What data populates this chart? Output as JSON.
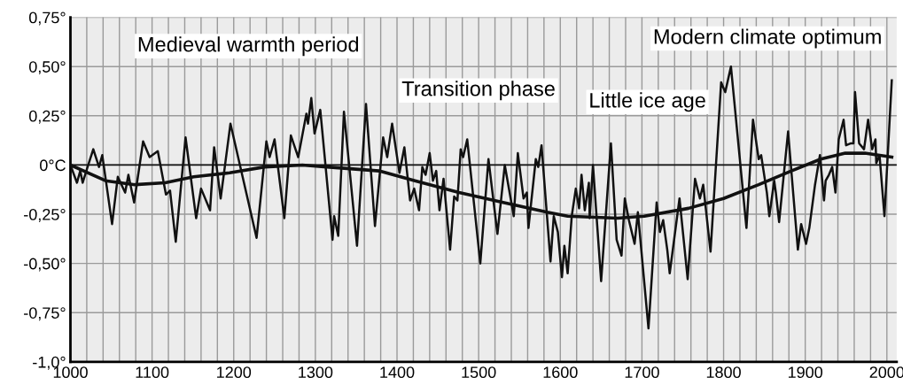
{
  "chart_data": {
    "type": "line",
    "xlim": [
      1000,
      2012
    ],
    "ylim": [
      -1.0,
      0.75
    ],
    "xticks": [
      1000,
      {
        "value": 1020,
        "label": null
      },
      {
        "value": 1040,
        "label": null
      },
      {
        "value": 1060,
        "label": null
      },
      {
        "value": 1080,
        "label": null
      },
      1100,
      {
        "value": 1120,
        "label": null
      },
      {
        "value": 1140,
        "label": null
      },
      {
        "value": 1160,
        "label": null
      },
      {
        "value": 1180,
        "label": null
      },
      1200,
      {
        "value": 1220,
        "label": null
      },
      {
        "value": 1240,
        "label": null
      },
      {
        "value": 1260,
        "label": null
      },
      {
        "value": 1280,
        "label": null
      },
      1300,
      {
        "value": 1320,
        "label": null
      },
      {
        "value": 1340,
        "label": null
      },
      {
        "value": 1360,
        "label": null
      },
      {
        "value": 1380,
        "label": null
      },
      1400,
      {
        "value": 1420,
        "label": null
      },
      {
        "value": 1440,
        "label": null
      },
      {
        "value": 1460,
        "label": null
      },
      {
        "value": 1480,
        "label": null
      },
      1500,
      {
        "value": 1520,
        "label": null
      },
      {
        "value": 1540,
        "label": null
      },
      {
        "value": 1560,
        "label": null
      },
      {
        "value": 1580,
        "label": null
      },
      1600,
      {
        "value": 1620,
        "label": null
      },
      {
        "value": 1640,
        "label": null
      },
      {
        "value": 1660,
        "label": null
      },
      {
        "value": 1680,
        "label": null
      },
      1700,
      {
        "value": 1720,
        "label": null
      },
      {
        "value": 1740,
        "label": null
      },
      {
        "value": 1760,
        "label": null
      },
      {
        "value": 1780,
        "label": null
      },
      1800,
      {
        "value": 1820,
        "label": null
      },
      {
        "value": 1840,
        "label": null
      },
      {
        "value": 1860,
        "label": null
      },
      {
        "value": 1880,
        "label": null
      },
      1900,
      {
        "value": 1920,
        "label": null
      },
      {
        "value": 1940,
        "label": null
      },
      {
        "value": 1960,
        "label": null
      },
      {
        "value": 1980,
        "label": null
      },
      2000
    ],
    "yticks": [
      {
        "value": 0.75,
        "label": "0,75°"
      },
      {
        "value": 0.5,
        "label": "0,50°"
      },
      {
        "value": 0.25,
        "label": "0,25°"
      },
      {
        "value": 0,
        "label": "0°C"
      },
      {
        "value": -0.25,
        "label": "-0,25°"
      },
      {
        "value": -0.5,
        "label": "-0,50°"
      },
      {
        "value": -0.75,
        "label": "-0,75°"
      },
      {
        "value": -1.0,
        "label": "-1,0°"
      }
    ],
    "grid": true,
    "ref_lines": [
      {
        "axis": "y",
        "value": 0,
        "color": "#111111"
      }
    ],
    "series": [
      {
        "color": "#111111",
        "x": [
          1000,
          1008,
          1012,
          1015,
          1021,
          1028,
          1035,
          1039,
          1051,
          1058,
          1067,
          1071,
          1078,
          1089,
          1097,
          1107,
          1117,
          1122,
          1129,
          1141,
          1154,
          1160,
          1171,
          1176,
          1184,
          1196,
          1228,
          1240,
          1244,
          1250,
          1262,
          1270,
          1279,
          1289,
          1291,
          1295,
          1299,
          1306,
          1321,
          1323,
          1328,
          1335,
          1351,
          1362,
          1373,
          1383,
          1388,
          1394,
          1403,
          1409,
          1416,
          1421,
          1427,
          1431,
          1435,
          1440,
          1444,
          1448,
          1452,
          1457,
          1465,
          1470,
          1474,
          1478,
          1481,
          1486,
          1502,
          1512,
          1523,
          1532,
          1543,
          1548,
          1555,
          1559,
          1561,
          1570,
          1573,
          1577,
          1588,
          1592,
          1597,
          1602,
          1605,
          1609,
          1614,
          1619,
          1623,
          1626,
          1630,
          1635,
          1636,
          1640,
          1650,
          1662,
          1669,
          1675,
          1679,
          1684,
          1691,
          1695,
          1708,
          1718,
          1722,
          1726,
          1731,
          1734,
          1746,
          1756,
          1765,
          1771,
          1775,
          1784,
          1797,
          1802,
          1809,
          1828,
          1836,
          1843,
          1846,
          1853,
          1856,
          1862,
          1864,
          1868,
          1879,
          1891,
          1895,
          1901,
          1905,
          1912,
          1918,
          1923,
          1925,
          1929,
          1933,
          1937,
          1941,
          1947,
          1950,
          1956,
          1959,
          1961,
          1966,
          1972,
          1977,
          1982,
          1986,
          1987,
          1991,
          1997,
          2006
        ],
        "values": [
          0.0,
          -0.09,
          -0.03,
          -0.09,
          -0.01,
          0.08,
          -0.01,
          0.05,
          -0.3,
          -0.06,
          -0.14,
          -0.05,
          -0.19,
          0.12,
          0.04,
          0.07,
          -0.15,
          -0.13,
          -0.39,
          0.14,
          -0.27,
          -0.12,
          -0.23,
          0.09,
          -0.17,
          0.21,
          -0.37,
          0.12,
          0.04,
          0.13,
          -0.27,
          0.15,
          0.04,
          0.26,
          0.21,
          0.34,
          0.16,
          0.28,
          -0.38,
          -0.26,
          -0.36,
          0.27,
          -0.41,
          0.31,
          -0.31,
          0.14,
          0.04,
          0.21,
          -0.04,
          0.09,
          -0.18,
          -0.12,
          -0.23,
          -0.01,
          -0.05,
          0.06,
          -0.08,
          -0.03,
          -0.23,
          -0.07,
          -0.43,
          -0.16,
          -0.18,
          0.08,
          0.04,
          0.13,
          -0.5,
          0.03,
          -0.35,
          0.0,
          -0.26,
          0.06,
          -0.17,
          -0.14,
          -0.32,
          0.03,
          -0.01,
          0.1,
          -0.49,
          -0.26,
          -0.34,
          -0.57,
          -0.41,
          -0.55,
          -0.26,
          -0.12,
          -0.22,
          -0.05,
          -0.23,
          -0.09,
          -0.27,
          0.0,
          -0.59,
          0.11,
          -0.38,
          -0.46,
          -0.17,
          -0.28,
          -0.4,
          -0.24,
          -0.83,
          -0.19,
          -0.34,
          -0.28,
          -0.43,
          -0.55,
          -0.17,
          -0.58,
          -0.07,
          -0.17,
          -0.1,
          -0.44,
          0.42,
          0.37,
          0.5,
          -0.32,
          0.23,
          0.03,
          0.05,
          -0.14,
          -0.26,
          -0.08,
          -0.14,
          -0.29,
          0.17,
          -0.43,
          -0.3,
          -0.4,
          -0.32,
          -0.1,
          0.05,
          -0.18,
          -0.08,
          -0.05,
          -0.01,
          -0.14,
          0.13,
          0.23,
          0.1,
          0.11,
          0.11,
          0.37,
          0.11,
          0.08,
          0.23,
          0.08,
          0.13,
          0.01,
          0.05,
          -0.26,
          0.43
        ]
      },
      {
        "color": "#111111",
        "x": [
          1000,
          1043,
          1079,
          1116,
          1151,
          1195,
          1238,
          1284,
          1314,
          1378,
          1422,
          1476,
          1530,
          1584,
          1609,
          1670,
          1703,
          1757,
          1800,
          1843,
          1883,
          1919,
          1949,
          1973,
          2006
        ],
        "values": [
          0.0,
          -0.08,
          -0.1,
          -0.09,
          -0.06,
          -0.04,
          -0.01,
          0.0,
          -0.01,
          -0.03,
          -0.08,
          -0.14,
          -0.19,
          -0.24,
          -0.26,
          -0.27,
          -0.26,
          -0.22,
          -0.17,
          -0.1,
          -0.03,
          0.03,
          0.06,
          0.06,
          0.04
        ]
      }
    ],
    "annotations": [
      "Medieval warmth period",
      "Transition phase",
      "Little ice age",
      "Modern climate optimum"
    ]
  }
}
